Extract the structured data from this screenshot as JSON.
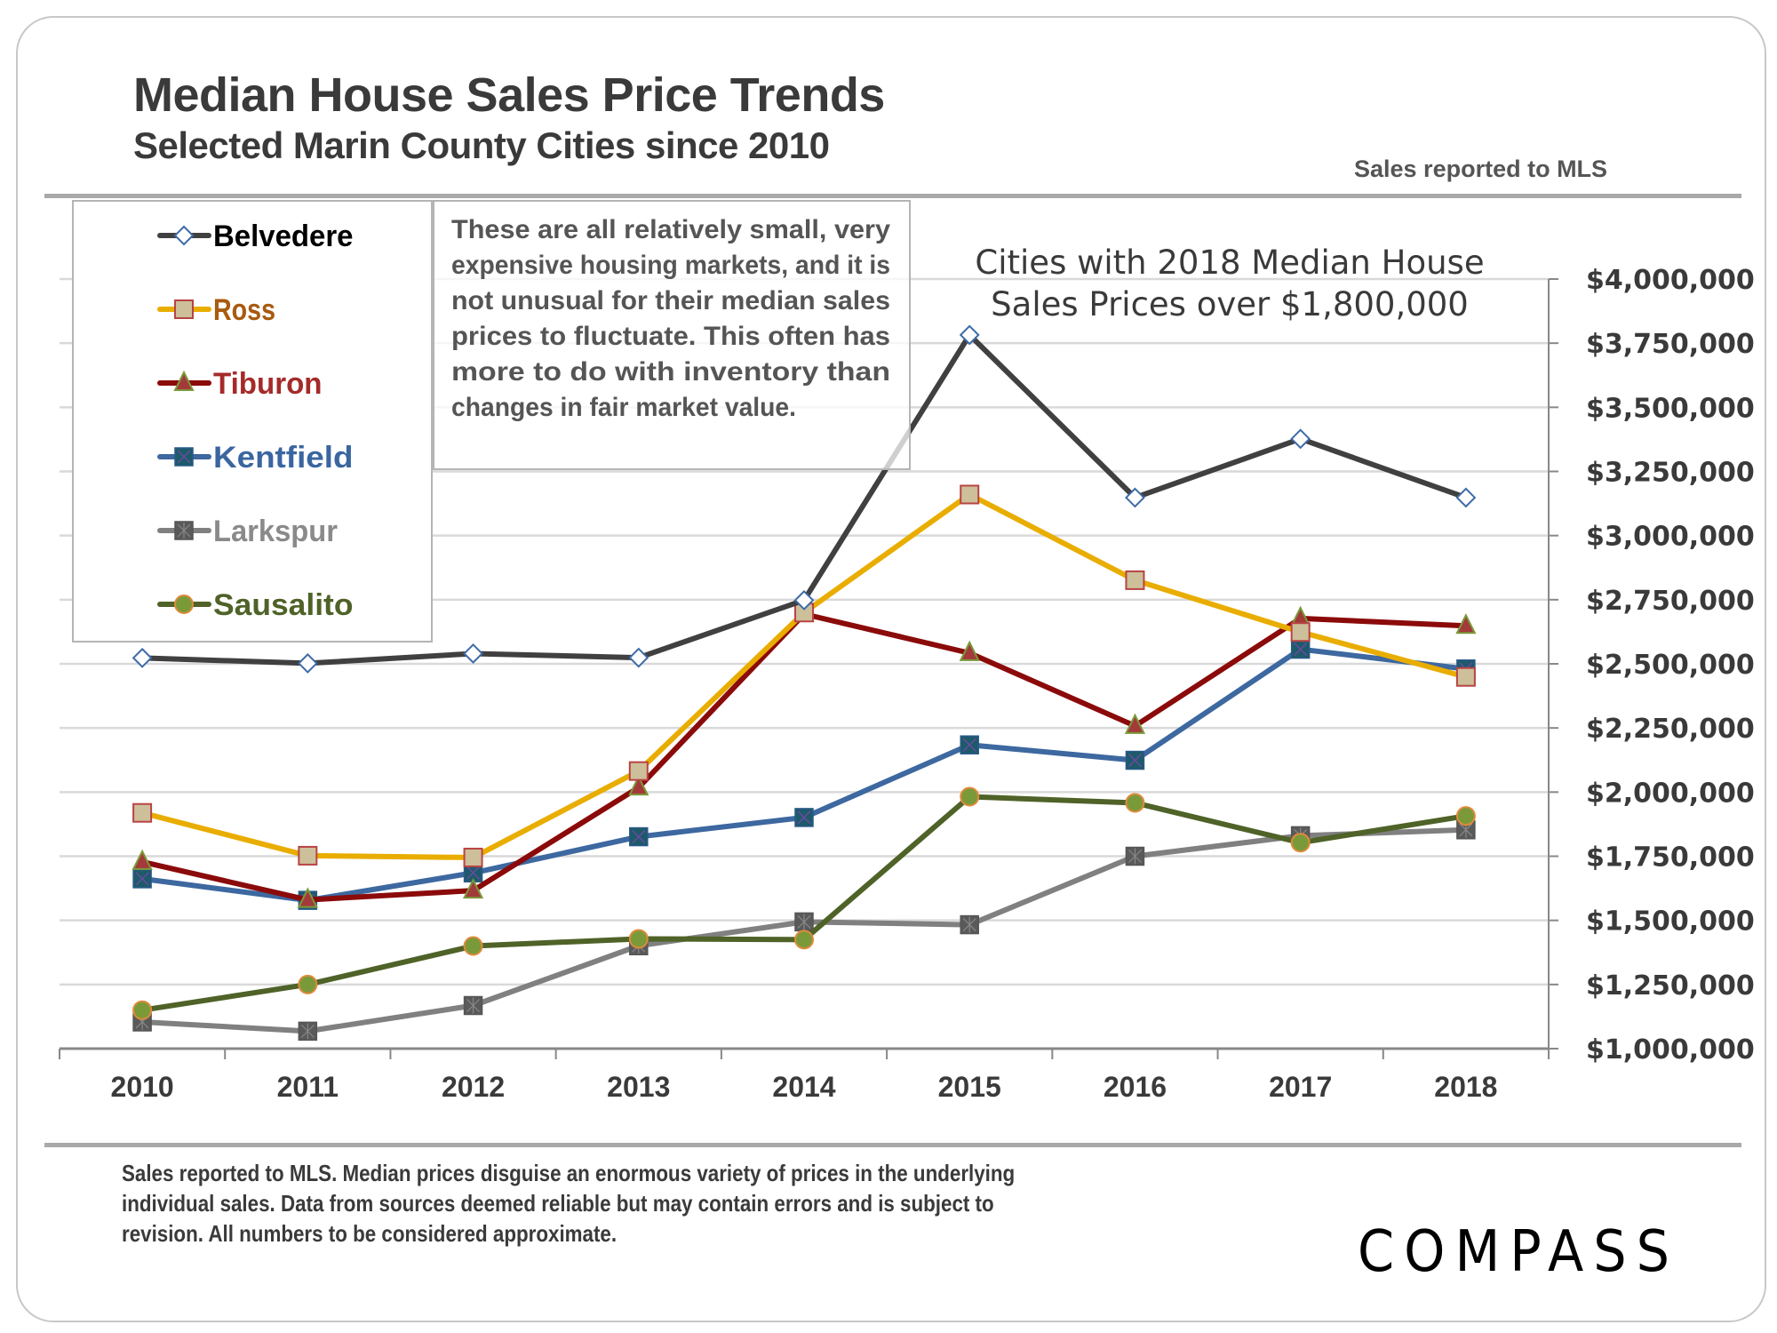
{
  "header": {
    "title": "Median House Sales Price Trends",
    "subtitle": "Selected Marin County Cities since 2010",
    "source_note": "Sales reported to MLS"
  },
  "annotation_box": {
    "lines": [
      "These are all relatively small, very",
      "expensive housing markets, and it is",
      "not unusual for their median sales",
      "prices to fluctuate. This often has",
      "more to do with inventory than",
      "changes in fair market value."
    ]
  },
  "footer": {
    "note": "Sales reported to MLS. Median prices disguise an enormous variety of prices in the underlying individual sales. Data from sources deemed reliable but may contain errors and is subject to revision. All numbers to be considered approximate.",
    "brand": "COMPASS"
  },
  "chart_data": {
    "type": "line",
    "title": "Cities with 2018 Median House Sales Prices over $1,800,000",
    "title_lines": [
      "Cities with 2018 Median House",
      "Sales Prices over $1,800,000"
    ],
    "xlabel": "",
    "ylabel": "",
    "categories": [
      "2010",
      "2011",
      "2012",
      "2013",
      "2014",
      "2015",
      "2016",
      "2017",
      "2018"
    ],
    "ylim": [
      1000000,
      4000000
    ],
    "y_ticks": [
      1000000,
      1250000,
      1500000,
      1750000,
      2000000,
      2250000,
      2500000,
      2750000,
      3000000,
      3250000,
      3500000,
      3750000,
      4000000
    ],
    "y_tick_labels": [
      "$1,000,000",
      "$1,250,000",
      "$1,500,000",
      "$1,750,000",
      "$2,000,000",
      "$2,250,000",
      "$2,500,000",
      "$2,750,000",
      "$3,000,000",
      "$3,250,000",
      "$3,500,000",
      "$3,750,000",
      "$4,000,000"
    ],
    "y_axis_side": "right",
    "grid": true,
    "legend_position": "top-left",
    "series": [
      {
        "name": "Belvedere",
        "color": "#404040",
        "marker": "diamond",
        "marker_fill": "#ffffff",
        "marker_stroke": "#3d6ba8",
        "label_color": "#000000",
        "values": [
          2523000,
          2502000,
          2540000,
          2524000,
          2748000,
          3782000,
          3148000,
          3377000,
          3148000
        ]
      },
      {
        "name": "Ross",
        "color": "#e9ad00",
        "marker": "square",
        "marker_fill": "#cdbf9a",
        "marker_stroke": "#b84444",
        "label_color": "#a85a10",
        "values": [
          1919000,
          1752000,
          1745000,
          2082000,
          2700000,
          3160000,
          2826000,
          2624000,
          2449000
        ]
      },
      {
        "name": "Tiburon",
        "color": "#8b0a0a",
        "marker": "triangle",
        "marker_fill": "#a33a3a",
        "marker_stroke": "#7a9a3a",
        "label_color": "#a52a2a",
        "values": [
          1728000,
          1580000,
          1616000,
          2018000,
          2694000,
          2542000,
          2258000,
          2677000,
          2648000
        ]
      },
      {
        "name": "Kentfield",
        "color": "#3d68a0",
        "marker": "square-x",
        "marker_fill": "#1d5a6a",
        "marker_stroke": "#6a4aa0",
        "label_color": "#3a66a0",
        "values": [
          1662000,
          1578000,
          1685000,
          1826000,
          1901000,
          2184000,
          2124000,
          2557000,
          2480000
        ]
      },
      {
        "name": "Larkspur",
        "color": "#808080",
        "marker": "square-star",
        "marker_fill": "#5a5a5a",
        "marker_stroke": "#888888",
        "label_color": "#8a8a8a",
        "values": [
          1104000,
          1068000,
          1168000,
          1401000,
          1494000,
          1483000,
          1750000,
          1830000,
          1853000
        ]
      },
      {
        "name": "Sausalito",
        "color": "#4f6228",
        "marker": "circle",
        "marker_fill": "#7a9a3a",
        "marker_stroke": "#e08a3a",
        "label_color": "#4f6228",
        "values": [
          1150000,
          1250000,
          1400000,
          1428000,
          1425000,
          1982000,
          1958000,
          1803000,
          1907000
        ]
      }
    ]
  }
}
